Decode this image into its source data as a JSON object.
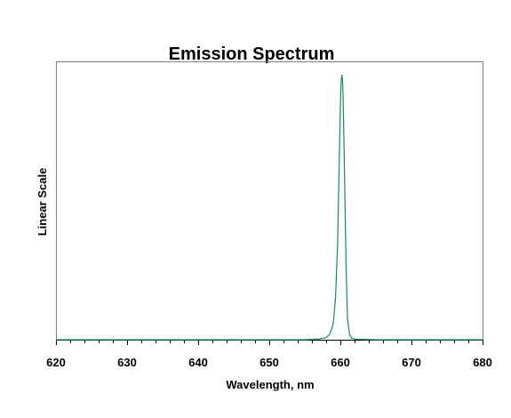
{
  "chart_data": {
    "type": "line",
    "title": "Emission Spectrum",
    "xlabel": "Wavelength, nm",
    "ylabel": "Linear Scale",
    "xlim": [
      620,
      680
    ],
    "ylim": [
      0,
      1.05
    ],
    "x_ticks": [
      "620",
      "630",
      "640",
      "650",
      "660",
      "670",
      "680"
    ],
    "minor_tick_step": 2,
    "grid": false,
    "line_color": "#1a8a5a",
    "series": [
      {
        "x": [
          620,
          630,
          640,
          650,
          655,
          657,
          658,
          658.5,
          659,
          659.3,
          659.6,
          659.8,
          660.0,
          660.1,
          660.2,
          660.3,
          660.4,
          660.6,
          660.8,
          661.0,
          661.3,
          661.6,
          662,
          665,
          670,
          680
        ],
        "y": [
          0,
          0,
          0,
          0,
          0,
          0.003,
          0.008,
          0.02,
          0.06,
          0.15,
          0.35,
          0.62,
          0.88,
          0.97,
          1.0,
          0.98,
          0.9,
          0.6,
          0.28,
          0.08,
          0.02,
          0.006,
          0.002,
          0,
          0,
          0
        ]
      }
    ]
  }
}
